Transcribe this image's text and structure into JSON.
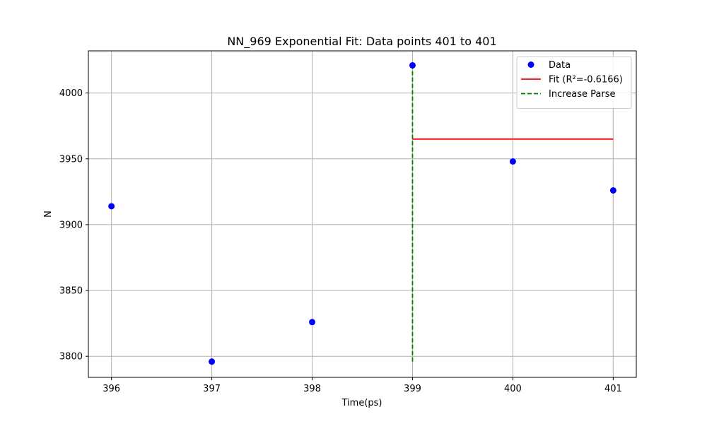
{
  "chart_data": {
    "type": "scatter",
    "title": "NN_969 Exponential Fit: Data points 401 to 401",
    "xlabel": "Time(ps)",
    "ylabel": "N",
    "xlim": [
      395.77,
      401.23
    ],
    "ylim": [
      3784,
      4032
    ],
    "xticks": [
      396,
      397,
      398,
      399,
      400,
      401
    ],
    "yticks": [
      3800,
      3850,
      3900,
      3950,
      4000
    ],
    "grid": true,
    "legend_position": "top-right",
    "series": [
      {
        "name": "Data",
        "kind": "scatter",
        "color": "#0000ff",
        "x": [
          396,
          397,
          398,
          399,
          400,
          401
        ],
        "y": [
          3914,
          3796,
          3826,
          4021,
          3948,
          3926
        ]
      },
      {
        "name": "Fit (R²=-0.6166)",
        "kind": "line",
        "color": "#ff0000",
        "style": "solid",
        "x": [
          399,
          401
        ],
        "y": [
          3965,
          3965
        ]
      },
      {
        "name": "Increase Parse",
        "kind": "line",
        "color": "#008000",
        "style": "dashed",
        "x": [
          399,
          399
        ],
        "y": [
          3796,
          4021
        ]
      }
    ]
  }
}
